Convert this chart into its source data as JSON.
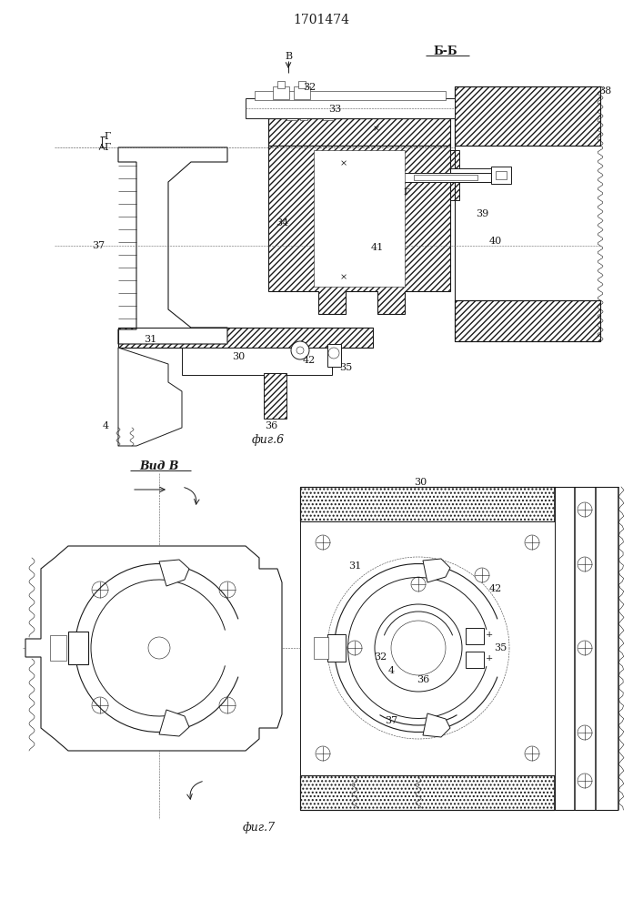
{
  "title": "1701474",
  "fig6_label": "Б-Б",
  "fig6_caption": "фиг.6",
  "fig7_label": "Вид В",
  "fig7_caption": "фиг.7",
  "bg_color": "#ffffff",
  "line_color": "#1a1a1a",
  "lw": 0.7,
  "lw_thin": 0.4,
  "lw_thick": 1.1,
  "lw_med": 0.8
}
